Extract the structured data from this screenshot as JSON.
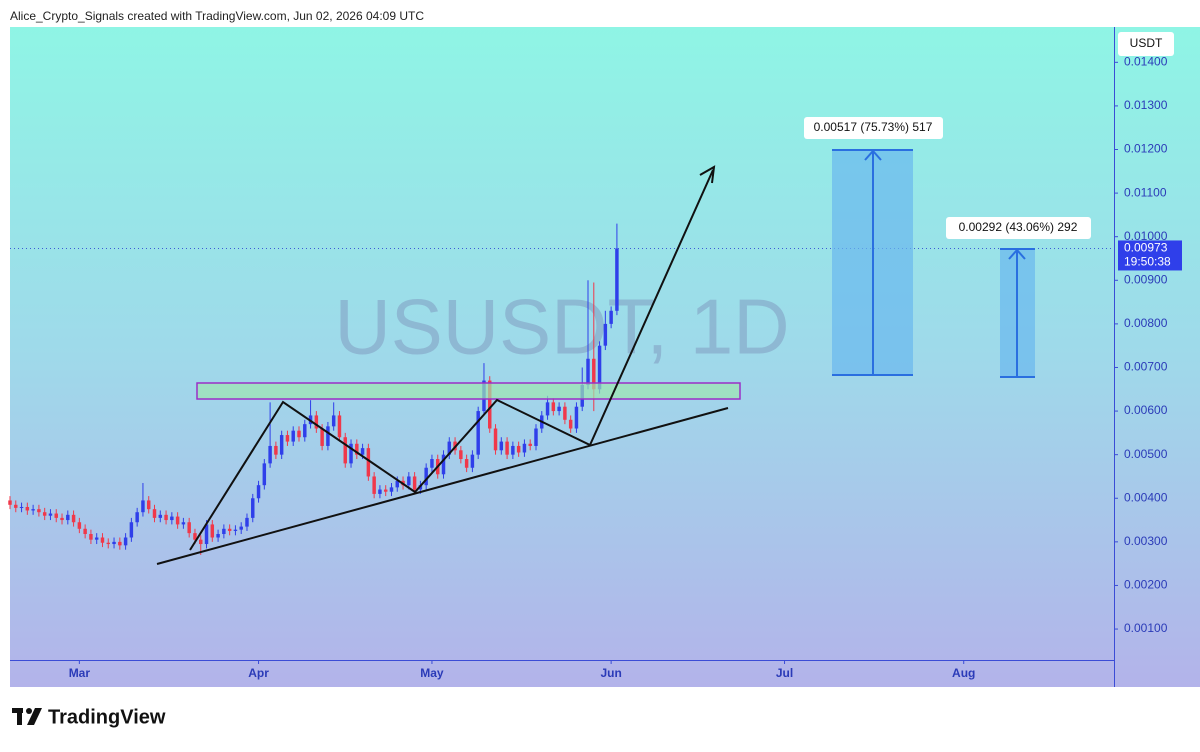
{
  "header": "Alice_Crypto_Signals created with TradingView.com, Jun 02, 2026 04:09 UTC",
  "footer": "TradingView",
  "chart_data": {
    "type": "candlestick",
    "watermark": "USUSDT, 1D",
    "currency": "USDT",
    "last_price": {
      "value": 0.00973,
      "label": "0.00973"
    },
    "countdown": "19:50:38",
    "annotations": [
      "0.00517 (75.73%) 517",
      "0.00292 (43.06%) 292"
    ],
    "up_color": "#2f3fea",
    "down_color": "#f0384a",
    "xlim": [
      0,
      191
    ],
    "xticks": [
      {
        "value": 12,
        "label": "Mar"
      },
      {
        "value": 43,
        "label": "Apr"
      },
      {
        "value": 73,
        "label": "May"
      },
      {
        "value": 104,
        "label": "Jun"
      },
      {
        "value": 134,
        "label": "Jul"
      },
      {
        "value": 165,
        "label": "Aug"
      }
    ],
    "ylim": [
      0.00029,
      0.01481
    ],
    "yticks": [
      {
        "value": 0.001,
        "label": "0.00100"
      },
      {
        "value": 0.002,
        "label": "0.00200"
      },
      {
        "value": 0.003,
        "label": "0.00300"
      },
      {
        "value": 0.004,
        "label": "0.00400"
      },
      {
        "value": 0.005,
        "label": "0.00500"
      },
      {
        "value": 0.006,
        "label": "0.00600"
      },
      {
        "value": 0.007,
        "label": "0.00700"
      },
      {
        "value": 0.008,
        "label": "0.00800"
      },
      {
        "value": 0.009,
        "label": "0.00900"
      },
      {
        "value": 0.01,
        "label": "0.01000"
      },
      {
        "value": 0.011,
        "label": "0.01100"
      },
      {
        "value": 0.012,
        "label": "0.01200"
      },
      {
        "value": 0.013,
        "label": "0.01300"
      },
      {
        "value": 0.014,
        "label": "0.01400"
      }
    ],
    "open": [
      0.00395,
      0.00385,
      0.00378,
      0.0038,
      0.00372,
      0.00375,
      0.00368,
      0.0036,
      0.00365,
      0.00355,
      0.0035,
      0.00362,
      0.00345,
      0.0033,
      0.00318,
      0.00305,
      0.0031,
      0.00298,
      0.00295,
      0.003,
      0.00292,
      0.0031,
      0.00345,
      0.00368,
      0.00395,
      0.00375,
      0.00355,
      0.00362,
      0.0035,
      0.00358,
      0.0034,
      0.00345,
      0.0032,
      0.00305,
      0.00295,
      0.0034,
      0.0031,
      0.00318,
      0.0033,
      0.00325,
      0.00328,
      0.00335,
      0.00355,
      0.004,
      0.0043,
      0.0048,
      0.0052,
      0.005,
      0.00545,
      0.0053,
      0.00555,
      0.0054,
      0.0057,
      0.0059,
      0.0056,
      0.0052,
      0.00565,
      0.0059,
      0.0054,
      0.0048,
      0.00525,
      0.005,
      0.00515,
      0.0045,
      0.0041,
      0.0042,
      0.00415,
      0.00425,
      0.0044,
      0.0043,
      0.0045,
      0.0042,
      0.0043,
      0.0047,
      0.0049,
      0.00455,
      0.005,
      0.0053,
      0.0051,
      0.0049,
      0.0047,
      0.005,
      0.006,
      0.0067,
      0.0056,
      0.0051,
      0.0053,
      0.005,
      0.0052,
      0.00505,
      0.00525,
      0.0052,
      0.0056,
      0.0059,
      0.0062,
      0.006,
      0.0061,
      0.0058,
      0.0056,
      0.0061,
      0.0066,
      0.0072,
      0.0065,
      0.0075,
      0.008,
      0.0083
    ],
    "high": [
      0.00405,
      0.00395,
      0.0039,
      0.0039,
      0.00385,
      0.00385,
      0.00378,
      0.00375,
      0.00375,
      0.00365,
      0.00372,
      0.00372,
      0.00355,
      0.0034,
      0.00328,
      0.0032,
      0.0032,
      0.00308,
      0.0031,
      0.0031,
      0.0032,
      0.00355,
      0.00378,
      0.00435,
      0.00405,
      0.00385,
      0.00372,
      0.00372,
      0.00368,
      0.00368,
      0.00355,
      0.00355,
      0.0033,
      0.00315,
      0.0035,
      0.0035,
      0.00328,
      0.0034,
      0.0034,
      0.00338,
      0.00345,
      0.00365,
      0.0041,
      0.0044,
      0.0049,
      0.0062,
      0.0053,
      0.00555,
      0.00555,
      0.00565,
      0.00565,
      0.0058,
      0.00625,
      0.006,
      0.0057,
      0.00575,
      0.0062,
      0.006,
      0.0055,
      0.00535,
      0.00535,
      0.00525,
      0.00525,
      0.0046,
      0.0043,
      0.0043,
      0.00435,
      0.0045,
      0.0045,
      0.0046,
      0.0046,
      0.0044,
      0.0048,
      0.005,
      0.005,
      0.0051,
      0.0054,
      0.0054,
      0.0052,
      0.005,
      0.0051,
      0.0061,
      0.0071,
      0.0068,
      0.0057,
      0.0054,
      0.0054,
      0.0053,
      0.0053,
      0.00535,
      0.00535,
      0.0057,
      0.006,
      0.00635,
      0.0063,
      0.0062,
      0.0062,
      0.0059,
      0.0062,
      0.007,
      0.009,
      0.00895,
      0.0076,
      0.0083,
      0.0084,
      0.0103
    ],
    "low": [
      0.00375,
      0.00368,
      0.00368,
      0.00362,
      0.00362,
      0.00358,
      0.0035,
      0.0035,
      0.00345,
      0.0034,
      0.0034,
      0.00335,
      0.0032,
      0.00308,
      0.00295,
      0.00295,
      0.00288,
      0.00285,
      0.00285,
      0.00282,
      0.00282,
      0.003,
      0.00335,
      0.00358,
      0.00365,
      0.00345,
      0.00345,
      0.0034,
      0.0034,
      0.0033,
      0.0033,
      0.0031,
      0.00295,
      0.0027,
      0.00285,
      0.003,
      0.003,
      0.00308,
      0.00315,
      0.00315,
      0.00318,
      0.00325,
      0.00345,
      0.0039,
      0.0042,
      0.0047,
      0.0049,
      0.0049,
      0.0052,
      0.0052,
      0.0053,
      0.0053,
      0.0056,
      0.0055,
      0.0051,
      0.0051,
      0.00555,
      0.0053,
      0.0047,
      0.0047,
      0.0049,
      0.0049,
      0.0044,
      0.004,
      0.004,
      0.00405,
      0.00405,
      0.00415,
      0.0042,
      0.0042,
      0.0041,
      0.0041,
      0.0042,
      0.0046,
      0.00445,
      0.00445,
      0.0049,
      0.005,
      0.0048,
      0.0046,
      0.0046,
      0.0049,
      0.0059,
      0.0055,
      0.005,
      0.005,
      0.0049,
      0.0049,
      0.00495,
      0.00495,
      0.0051,
      0.0051,
      0.0055,
      0.0058,
      0.0059,
      0.0059,
      0.0057,
      0.0055,
      0.0055,
      0.006,
      0.0065,
      0.006,
      0.0064,
      0.0074,
      0.0079,
      0.0082
    ],
    "close": [
      0.00385,
      0.00378,
      0.0038,
      0.00372,
      0.00375,
      0.00368,
      0.0036,
      0.00365,
      0.00355,
      0.0035,
      0.00362,
      0.00345,
      0.0033,
      0.00318,
      0.00305,
      0.0031,
      0.00298,
      0.00295,
      0.003,
      0.00292,
      0.0031,
      0.00345,
      0.00368,
      0.00395,
      0.00375,
      0.00355,
      0.00362,
      0.0035,
      0.00358,
      0.0034,
      0.00345,
      0.0032,
      0.00305,
      0.00295,
      0.0034,
      0.0031,
      0.00318,
      0.0033,
      0.00325,
      0.00328,
      0.00335,
      0.00355,
      0.004,
      0.0043,
      0.0048,
      0.0052,
      0.005,
      0.00545,
      0.0053,
      0.00555,
      0.0054,
      0.0057,
      0.0059,
      0.0056,
      0.0052,
      0.00565,
      0.0059,
      0.0054,
      0.0048,
      0.00525,
      0.005,
      0.00515,
      0.0045,
      0.0041,
      0.0042,
      0.00415,
      0.00425,
      0.0044,
      0.0043,
      0.0045,
      0.0042,
      0.0043,
      0.0047,
      0.0049,
      0.00455,
      0.005,
      0.0053,
      0.0051,
      0.0049,
      0.0047,
      0.005,
      0.006,
      0.0067,
      0.0056,
      0.0051,
      0.0053,
      0.005,
      0.0052,
      0.00505,
      0.00525,
      0.0052,
      0.0056,
      0.0059,
      0.0062,
      0.006,
      0.0061,
      0.0058,
      0.0056,
      0.0061,
      0.0066,
      0.0072,
      0.0065,
      0.0075,
      0.008,
      0.0083,
      0.00973
    ]
  }
}
